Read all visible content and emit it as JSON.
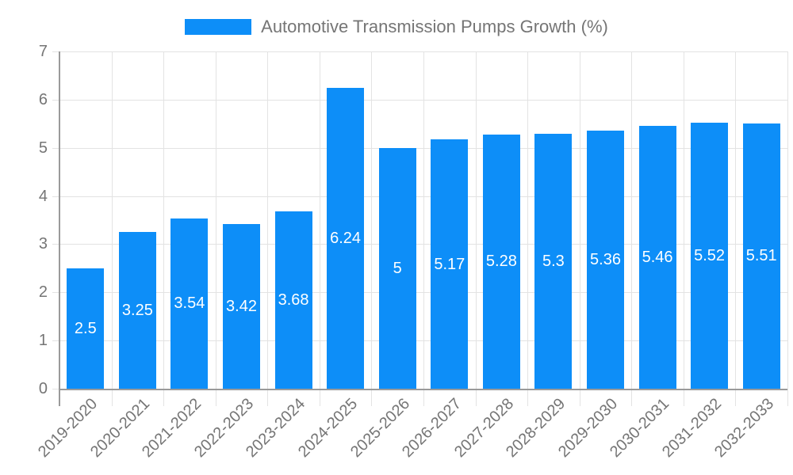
{
  "chart_data": {
    "type": "bar",
    "title": "Automotive Transmission Pumps Growth (%)",
    "categories": [
      "2019-2020",
      "2020-2021",
      "2021-2022",
      "2022-2023",
      "2023-2024",
      "2024-2025",
      "2025-2026",
      "2026-2027",
      "2027-2028",
      "2028-2029",
      "2029-2030",
      "2030-2031",
      "2031-2032",
      "2032-2033"
    ],
    "values": [
      2.5,
      3.25,
      3.54,
      3.42,
      3.68,
      6.24,
      5,
      5.17,
      5.28,
      5.3,
      5.36,
      5.46,
      5.52,
      5.51
    ],
    "xlabel": "",
    "ylabel": "",
    "ylim": [
      0,
      7
    ],
    "yticks": [
      0,
      1,
      2,
      3,
      4,
      5,
      6,
      7
    ],
    "grid": true,
    "legend_position": "top-center",
    "value_label_style": "inside-center-white"
  },
  "colors": {
    "bar": "#0d8ef8",
    "grid": "#e3e3e3",
    "axis": "#9a9a9a",
    "tick_text": "#757575",
    "value_label_text": "#ffffff",
    "background": "#ffffff"
  }
}
